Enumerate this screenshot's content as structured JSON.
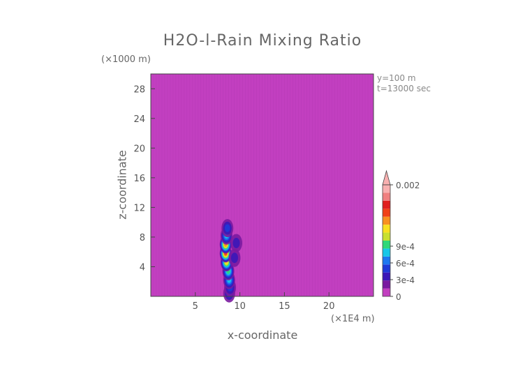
{
  "chart_data": {
    "type": "heatmap",
    "title": "H2O-l-Rain Mixing Ratio",
    "xlabel": "x-coordinate",
    "ylabel": "z-coordinate",
    "x_unit": "(×1E4 m)",
    "y_unit": "(×1000 m)",
    "xlim": [
      0,
      25
    ],
    "ylim": [
      0,
      30
    ],
    "x_ticks": [
      5,
      10,
      15,
      20
    ],
    "y_ticks": [
      4,
      8,
      12,
      16,
      20,
      24,
      28
    ],
    "annotations": [
      "y=100 m",
      "t=13000 sec"
    ],
    "background_value": 0,
    "colorbar": {
      "ticks": [
        {
          "value": 0,
          "label": "0"
        },
        {
          "value": 0.0003,
          "label": "3e-4"
        },
        {
          "value": 0.0006,
          "label": "6e-4"
        },
        {
          "value": 0.0009,
          "label": "9e-4"
        },
        {
          "value": 0.002,
          "label": "0.002"
        }
      ],
      "colors": [
        "#c23fc0",
        "#7a1aa0",
        "#3a18b8",
        "#1e3ad8",
        "#1e78f0",
        "#18c8e8",
        "#30d878",
        "#c8e030",
        "#f8e020",
        "#f89020",
        "#f04018",
        "#e02020",
        "#f08080",
        "#f8b0b0"
      ]
    },
    "plume": [
      {
        "x": 8.8,
        "z": 0.4,
        "v": 0.0004
      },
      {
        "x": 8.9,
        "z": 1.2,
        "v": 0.0005
      },
      {
        "x": 8.8,
        "z": 2.2,
        "v": 0.0007
      },
      {
        "x": 8.7,
        "z": 3.4,
        "v": 0.0009
      },
      {
        "x": 8.5,
        "z": 4.6,
        "v": 0.0012
      },
      {
        "x": 8.4,
        "z": 5.8,
        "v": 0.0016
      },
      {
        "x": 8.4,
        "z": 7.0,
        "v": 0.0014
      },
      {
        "x": 8.5,
        "z": 8.2,
        "v": 0.0008
      },
      {
        "x": 8.6,
        "z": 9.2,
        "v": 0.0004
      },
      {
        "x": 9.6,
        "z": 7.2,
        "v": 0.0003
      },
      {
        "x": 9.4,
        "z": 5.2,
        "v": 0.0003
      }
    ]
  }
}
